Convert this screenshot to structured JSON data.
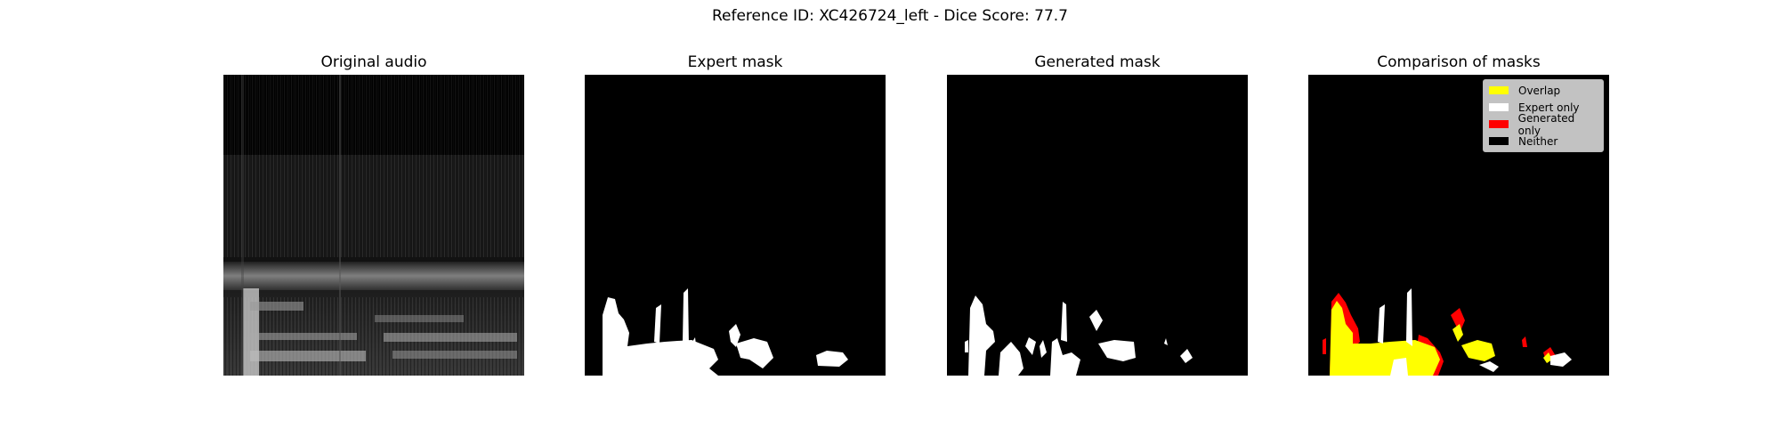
{
  "figure": {
    "title": "Reference ID: XC426724_left - Dice Score: 77.7"
  },
  "panels": [
    {
      "title": "Original audio",
      "kind": "spectrogram-image"
    },
    {
      "title": "Expert mask",
      "kind": "binary-mask-image"
    },
    {
      "title": "Generated mask",
      "kind": "binary-mask-image"
    },
    {
      "title": "Comparison of masks",
      "kind": "overlay-image"
    }
  ],
  "legend": {
    "entries": [
      {
        "label": "Overlap",
        "color": "#ffff00"
      },
      {
        "label": "Expert only",
        "color": "#ffffff"
      },
      {
        "label": "Generated only",
        "color": "#ff0000"
      },
      {
        "label": "Neither",
        "color": "#000000"
      }
    ]
  }
}
